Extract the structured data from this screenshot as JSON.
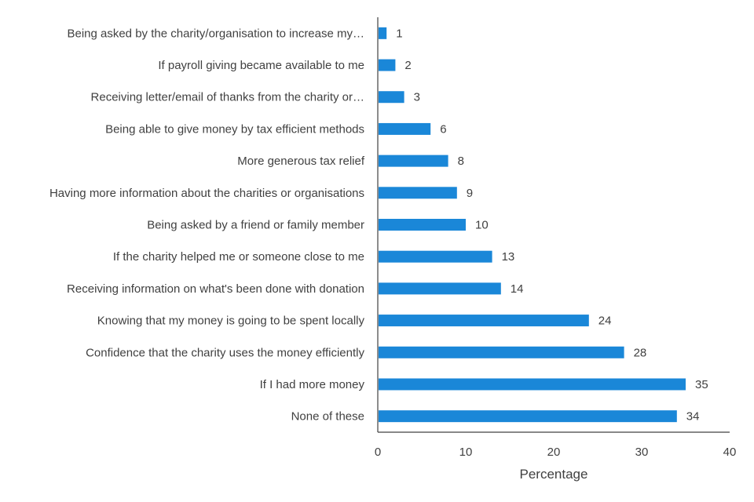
{
  "chart_data": {
    "type": "bar",
    "orientation": "horizontal",
    "categories": [
      "Being asked by the charity/organisation to increase my…",
      "If payroll giving became available to me",
      "Receiving letter/email of thanks from the charity or…",
      "Being able to give money by tax efficient methods",
      "More generous tax relief",
      "Having more information about the charities or organisations",
      "Being asked by a friend or family member",
      "If the charity helped me or someone close to me",
      "Receiving information on what's been done with donation",
      "Knowing that my money is going to be spent locally",
      "Confidence that the charity uses the money efficiently",
      "If I had more money",
      "None of these"
    ],
    "values": [
      1,
      2,
      3,
      6,
      8,
      9,
      10,
      13,
      14,
      24,
      28,
      35,
      34
    ],
    "value_labels": [
      "1",
      "2",
      "3",
      "6",
      "8",
      "9",
      "10",
      "13",
      "14",
      "24",
      "28",
      "35",
      "34"
    ],
    "xlabel": "Percentage",
    "ylabel": "",
    "xlim": [
      0,
      40
    ],
    "xticks": [
      "0",
      "10",
      "20",
      "30",
      "40"
    ],
    "grid": false,
    "legend": "none",
    "bar_color": "#1a87d8",
    "text_color": "#404040",
    "axis_color": "#404040"
  }
}
